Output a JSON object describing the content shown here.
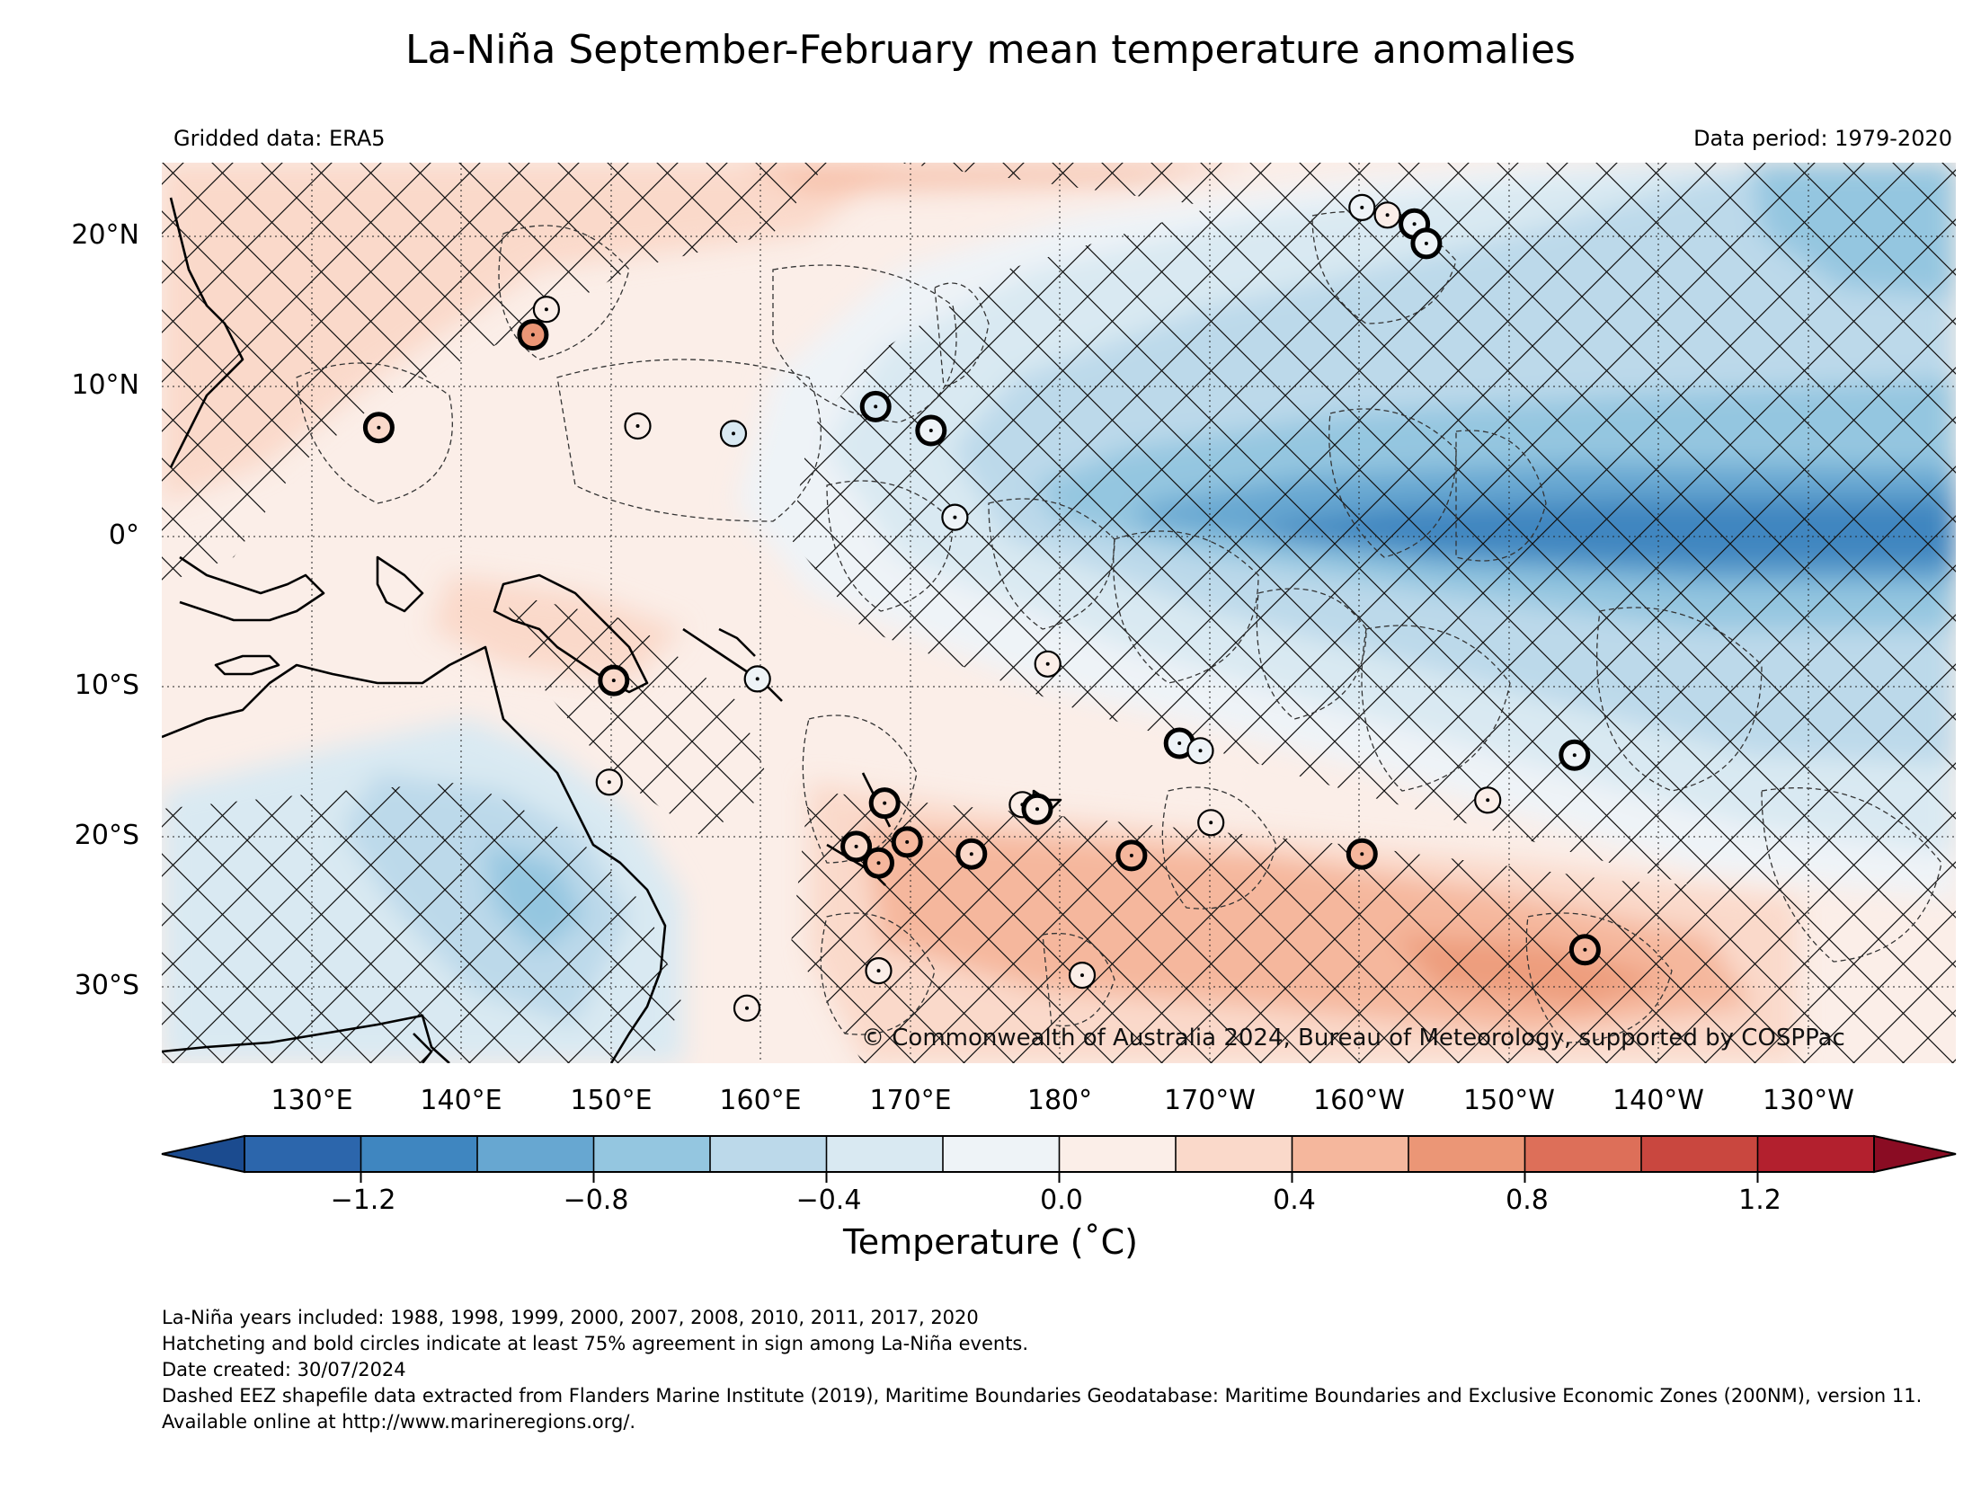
{
  "title": "La-Niña September-February mean temperature anomalies",
  "gridded_data": "Gridded data: ERA5",
  "data_period": "Data period: 1979-2020",
  "copyright": "© Commonwealth of Australia 2024, Bureau of Meteorology, supported by COSPPac",
  "lat_labels": [
    "20°N",
    "10°N",
    "0°",
    "10°S",
    "20°S",
    "30°S"
  ],
  "lon_labels": [
    "130°E",
    "140°E",
    "150°E",
    "160°E",
    "170°E",
    "180°",
    "170°W",
    "160°W",
    "150°W",
    "140°W",
    "130°W"
  ],
  "colorbar": {
    "label": "Temperature (˚C)",
    "tick_labels": [
      "−1.2",
      "−0.8",
      "−0.4",
      "0.0",
      "0.4",
      "0.8",
      "1.2"
    ],
    "levels": [
      -1.4,
      -1.2,
      -1.0,
      -0.8,
      -0.6,
      -0.4,
      -0.2,
      0.0,
      0.2,
      0.4,
      0.6,
      0.8,
      1.0,
      1.2,
      1.4
    ],
    "colors": [
      "#2c66ac",
      "#3f86c0",
      "#67a7d1",
      "#94c6e0",
      "#bcd9ea",
      "#d9e9f2",
      "#eef3f7",
      "#fbeee8",
      "#fad9ca",
      "#f5b79d",
      "#eb9676",
      "#dd6f59",
      "#c9473f",
      "#b3202e"
    ],
    "extend_low_color": "#1b4b8f",
    "extend_high_color": "#8a0c23"
  },
  "notes": [
    "La-Niña years included: 1988, 1998, 1999, 2000, 2007, 2008, 2010, 2011, 2017, 2020",
    "Hatcheting and bold circles indicate at least 75% agreement in sign among La-Niña events.",
    "Date created: 30/07/2024",
    "Dashed EEZ shapefile data extracted from Flanders Marine Institute (2019), Maritime Boundaries Geodatabase: Maritime Boundaries and Exclusive Economic Zones (200NM), version 11. Available online at http://www.marineregions.org/."
  ],
  "station_circles": [
    {
      "lon": 134.5,
      "lat": 7.3,
      "anomaly": 0.2,
      "bold": true
    },
    {
      "lon": 144.8,
      "lat": 13.5,
      "anomaly": 0.7,
      "bold": true
    },
    {
      "lon": 145.7,
      "lat": 15.2,
      "anomaly": 0.1,
      "bold": false
    },
    {
      "lon": 151.8,
      "lat": 7.4,
      "anomaly": 0.1,
      "bold": false
    },
    {
      "lon": 158.2,
      "lat": 6.9,
      "anomaly": -0.4,
      "bold": false
    },
    {
      "lon": 167.7,
      "lat": 8.7,
      "anomaly": -0.3,
      "bold": true
    },
    {
      "lon": 171.4,
      "lat": 7.1,
      "anomaly": -0.1,
      "bold": true
    },
    {
      "lon": 173.0,
      "lat": 1.3,
      "anomaly": -0.1,
      "bold": false
    },
    {
      "lon": 150.2,
      "lat": -9.6,
      "anomaly": 0.2,
      "bold": true
    },
    {
      "lon": 159.8,
      "lat": -9.5,
      "anomaly": -0.1,
      "bold": false
    },
    {
      "lon": 179.2,
      "lat": -8.5,
      "anomaly": 0.0,
      "bold": false
    },
    {
      "lon": 149.9,
      "lat": -16.4,
      "anomaly": 0.0,
      "bold": false
    },
    {
      "lon": 168.3,
      "lat": -17.8,
      "anomaly": 0.3,
      "bold": true
    },
    {
      "lon": 166.4,
      "lat": -20.7,
      "anomaly": 0.3,
      "bold": true
    },
    {
      "lon": 167.9,
      "lat": -21.8,
      "anomaly": 0.4,
      "bold": true
    },
    {
      "lon": 169.8,
      "lat": -20.4,
      "anomaly": 0.4,
      "bold": true
    },
    {
      "lon": 177.5,
      "lat": -17.9,
      "anomaly": 0.0,
      "bold": false
    },
    {
      "lon": 178.5,
      "lat": -18.2,
      "anomaly": 0.0,
      "bold": true
    },
    {
      "lon": 174.1,
      "lat": -21.2,
      "anomaly": 0.2,
      "bold": true
    },
    {
      "lon": -172.0,
      "lat": -13.8,
      "anomaly": -0.1,
      "bold": true
    },
    {
      "lon": -170.6,
      "lat": -14.3,
      "anomaly": -0.1,
      "bold": false
    },
    {
      "lon": -169.9,
      "lat": -19.1,
      "anomaly": 0.1,
      "bold": false
    },
    {
      "lon": -175.2,
      "lat": -21.3,
      "anomaly": 0.4,
      "bold": true
    },
    {
      "lon": -159.8,
      "lat": -21.2,
      "anomaly": 0.4,
      "bold": true
    },
    {
      "lon": -151.4,
      "lat": -17.6,
      "anomaly": 0.0,
      "bold": false
    },
    {
      "lon": -145.6,
      "lat": -14.6,
      "anomaly": -0.1,
      "bold": true
    },
    {
      "lon": -144.9,
      "lat": -27.6,
      "anomaly": 0.5,
      "bold": true
    },
    {
      "lon": 167.9,
      "lat": -29.0,
      "anomaly": 0.1,
      "bold": false
    },
    {
      "lon": 159.1,
      "lat": -31.5,
      "anomaly": 0.1,
      "bold": false
    },
    {
      "lon": -178.5,
      "lat": -29.3,
      "anomaly": 0.1,
      "bold": false
    },
    {
      "lon": -159.8,
      "lat": 22.0,
      "anomaly": -0.1,
      "bold": false
    },
    {
      "lon": -158.1,
      "lat": 21.5,
      "anomaly": 0.0,
      "bold": false
    },
    {
      "lon": -156.3,
      "lat": 20.9,
      "anomaly": -0.2,
      "bold": true
    },
    {
      "lon": -155.5,
      "lat": 19.6,
      "anomaly": -0.2,
      "bold": true
    }
  ]
}
